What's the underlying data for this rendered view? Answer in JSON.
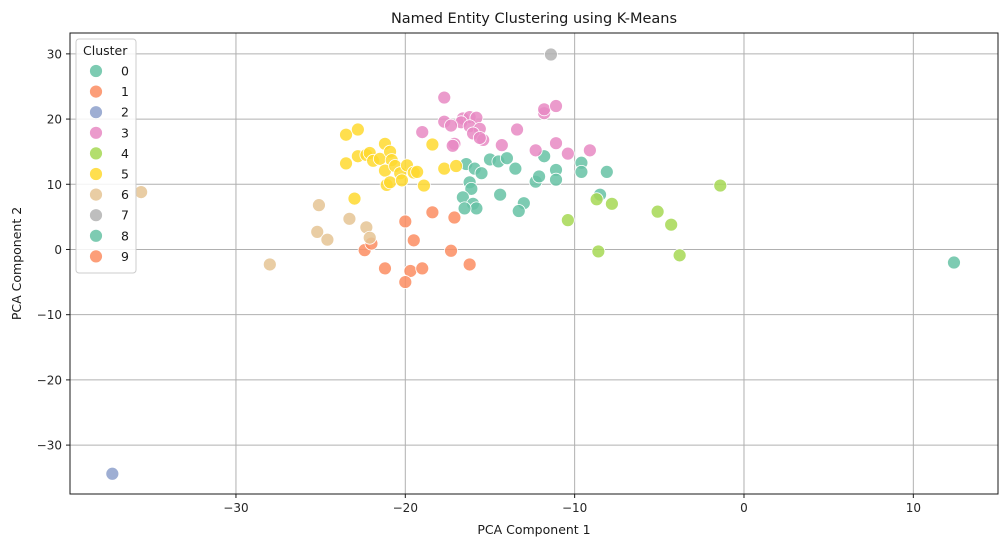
{
  "chart_data": {
    "type": "scatter",
    "title": "Named Entity Clustering using K-Means",
    "xlabel": "PCA Component 1",
    "ylabel": "PCA Component 2",
    "xlim": [
      -39.8,
      15
    ],
    "ylim": [
      -37.5,
      33.2
    ],
    "xticks": [
      -30,
      -20,
      -10,
      0,
      10
    ],
    "yticks": [
      -30,
      -20,
      -10,
      0,
      10,
      20,
      30
    ],
    "grid": true,
    "legend": {
      "title": "Cluster",
      "placement": "top-left"
    },
    "series": [
      {
        "name": "0",
        "color": "#66c2a5",
        "points": [
          [
            -16.4,
            13.1
          ],
          [
            -15.9,
            12.4
          ],
          [
            -15.5,
            11.7
          ],
          [
            -15.0,
            13.8
          ],
          [
            -14.5,
            13.5
          ],
          [
            -14.0,
            14.0
          ],
          [
            -13.5,
            12.4
          ],
          [
            -12.3,
            10.4
          ],
          [
            -11.8,
            14.3
          ],
          [
            -11.1,
            12.2
          ],
          [
            -11.1,
            10.7
          ],
          [
            -9.6,
            13.3
          ],
          [
            -9.6,
            11.9
          ],
          [
            -8.1,
            11.9
          ],
          [
            -8.5,
            8.4
          ],
          [
            -16.2,
            10.3
          ],
          [
            -16.1,
            9.3
          ],
          [
            -16.6,
            8.0
          ],
          [
            -16.0,
            7.0
          ],
          [
            -15.8,
            6.3
          ],
          [
            -16.5,
            6.3
          ],
          [
            -14.4,
            8.4
          ],
          [
            -13.0,
            7.1
          ],
          [
            -13.3,
            5.9
          ],
          [
            -12.1,
            11.2
          ],
          [
            12.4,
            -2.0
          ]
        ]
      },
      {
        "name": "1",
        "color": "#fc8d62",
        "points": [
          [
            -20.0,
            4.3
          ],
          [
            -19.5,
            1.4
          ],
          [
            -17.1,
            4.9
          ],
          [
            -17.3,
            -0.2
          ],
          [
            -21.2,
            -2.9
          ],
          [
            -19.7,
            -3.3
          ],
          [
            -19.0,
            -2.9
          ],
          [
            -16.2,
            -2.3
          ],
          [
            -20.0,
            -5.0
          ],
          [
            -22.4,
            -0.1
          ],
          [
            -22.0,
            0.9
          ]
        ]
      },
      {
        "name": "2",
        "color": "#8da0cb",
        "points": [
          [
            -37.3,
            -34.4
          ]
        ]
      },
      {
        "name": "3",
        "color": "#e78ac3",
        "points": [
          [
            -17.7,
            23.3
          ],
          [
            -16.6,
            20.1
          ],
          [
            -16.2,
            20.3
          ],
          [
            -15.8,
            20.2
          ],
          [
            -16.7,
            19.5
          ],
          [
            -16.2,
            18.9
          ],
          [
            -15.6,
            18.5
          ],
          [
            -16.0,
            17.8
          ],
          [
            -15.4,
            16.8
          ],
          [
            -15.6,
            17.1
          ],
          [
            -17.1,
            16.2
          ],
          [
            -17.2,
            15.9
          ],
          [
            -17.7,
            19.6
          ],
          [
            -17.3,
            19.0
          ],
          [
            -19.0,
            18.0
          ],
          [
            -14.3,
            16.0
          ],
          [
            -13.4,
            18.4
          ],
          [
            -12.3,
            15.2
          ],
          [
            -11.8,
            20.9
          ],
          [
            -11.8,
            21.5
          ],
          [
            -11.1,
            22.0
          ],
          [
            -11.1,
            16.3
          ],
          [
            -10.4,
            14.7
          ],
          [
            -9.1,
            15.2
          ]
        ]
      },
      {
        "name": "4",
        "color": "#a6d854",
        "points": [
          [
            -10.4,
            4.5
          ],
          [
            -8.7,
            7.7
          ],
          [
            -7.8,
            7.0
          ],
          [
            -8.6,
            -0.3
          ],
          [
            -5.1,
            5.8
          ],
          [
            -4.3,
            3.8
          ],
          [
            -3.8,
            -0.9
          ],
          [
            -1.4,
            9.8
          ]
        ]
      },
      {
        "name": "5",
        "color": "#ffd92f",
        "points": [
          [
            -23.5,
            17.6
          ],
          [
            -22.8,
            18.4
          ],
          [
            -23.5,
            13.2
          ],
          [
            -22.8,
            14.3
          ],
          [
            -22.3,
            14.5
          ],
          [
            -22.1,
            14.8
          ],
          [
            -21.9,
            13.6
          ],
          [
            -21.5,
            13.9
          ],
          [
            -21.2,
            16.2
          ],
          [
            -20.9,
            15.0
          ],
          [
            -20.8,
            13.7
          ],
          [
            -21.2,
            12.1
          ],
          [
            -20.6,
            12.8
          ],
          [
            -20.3,
            11.7
          ],
          [
            -19.9,
            12.9
          ],
          [
            -19.5,
            11.8
          ],
          [
            -19.3,
            11.9
          ],
          [
            -18.9,
            9.8
          ],
          [
            -18.4,
            16.1
          ],
          [
            -17.7,
            12.4
          ],
          [
            -17.0,
            12.8
          ],
          [
            -21.1,
            9.9
          ],
          [
            -20.9,
            10.3
          ],
          [
            -20.2,
            10.6
          ],
          [
            -23.0,
            7.8
          ]
        ]
      },
      {
        "name": "6",
        "color": "#e5c494",
        "points": [
          [
            -35.6,
            8.8
          ],
          [
            -25.1,
            6.8
          ],
          [
            -25.2,
            2.7
          ],
          [
            -24.6,
            1.5
          ],
          [
            -23.3,
            4.7
          ],
          [
            -22.3,
            3.4
          ],
          [
            -22.1,
            1.8
          ],
          [
            -28.0,
            -2.3
          ]
        ]
      },
      {
        "name": "7",
        "color": "#b3b3b3",
        "points": [
          [
            -11.4,
            29.9
          ]
        ]
      },
      {
        "name": "8",
        "color": "#66c2a5",
        "points": []
      },
      {
        "name": "9",
        "color": "#fc8d62",
        "points": [
          [
            -18.4,
            5.7
          ]
        ]
      }
    ]
  }
}
